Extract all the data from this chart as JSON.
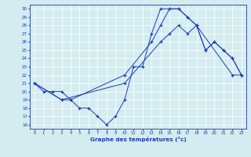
{
  "title": "Graphe des températures (°c)",
  "background_color": "#d4ecf0",
  "line_color": "#1a3ab5",
  "xlim": [
    -0.5,
    23.5
  ],
  "ylim": [
    15.5,
    30.5
  ],
  "xticks": [
    0,
    1,
    2,
    3,
    4,
    5,
    6,
    7,
    8,
    9,
    10,
    11,
    12,
    13,
    14,
    15,
    16,
    17,
    18,
    19,
    20,
    21,
    22,
    23
  ],
  "yticks": [
    16,
    17,
    18,
    19,
    20,
    21,
    22,
    23,
    24,
    25,
    26,
    27,
    28,
    29,
    30
  ],
  "series1_x": [
    0,
    1,
    2,
    3,
    4,
    5,
    6,
    7,
    8,
    9,
    10,
    11,
    12,
    13,
    14,
    15,
    16,
    17,
    18,
    19,
    20,
    21,
    22,
    23
  ],
  "series1_y": [
    21,
    20,
    20,
    20,
    19,
    18,
    18,
    17,
    16,
    17,
    19,
    23,
    23,
    27,
    30,
    30,
    30,
    29,
    28,
    25,
    26,
    25,
    24,
    22
  ],
  "series2_x": [
    0,
    3,
    4,
    10,
    13,
    14,
    15,
    16,
    17,
    18,
    19,
    20,
    21,
    22,
    23
  ],
  "series2_y": [
    21,
    19,
    19,
    22,
    26,
    28,
    30,
    30,
    29,
    28,
    25,
    26,
    25,
    24,
    22
  ],
  "series3_x": [
    0,
    3,
    10,
    14,
    15,
    16,
    17,
    18,
    22,
    23
  ],
  "series3_y": [
    21,
    19,
    21,
    26,
    27,
    28,
    27,
    28,
    22,
    22
  ]
}
